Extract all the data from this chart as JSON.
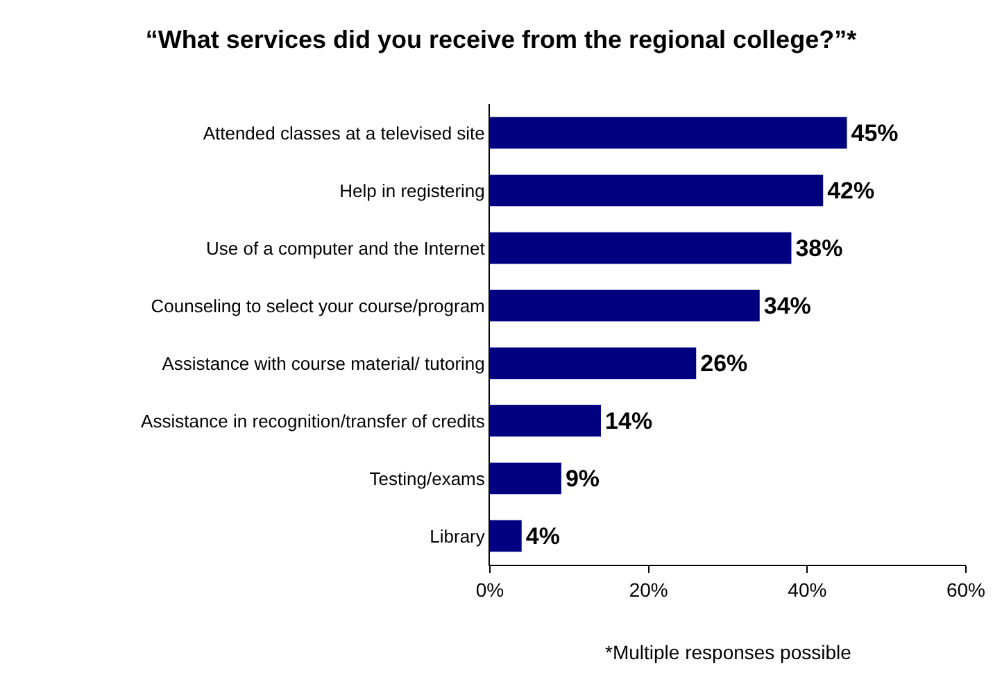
{
  "chart_data": {
    "type": "bar",
    "orientation": "horizontal",
    "title": "“What services did you receive from the regional college?”*",
    "categories": [
      "Attended classes at a televised site",
      "Help in registering",
      "Use of a computer and the Internet",
      "Counseling to select your course/program",
      "Assistance with course material/ tutoring",
      "Assistance in recognition/transfer of credits",
      "Testing/exams",
      "Library"
    ],
    "values": [
      45,
      42,
      38,
      34,
      26,
      14,
      9,
      4
    ],
    "value_labels": [
      "45%",
      "42%",
      "38%",
      "34%",
      "26%",
      "14%",
      "9%",
      "4%"
    ],
    "color": "#000080",
    "xlim": [
      0,
      60
    ],
    "xticks": [
      {
        "value": 0,
        "label": "0%"
      },
      {
        "value": 20,
        "label": "20%"
      },
      {
        "value": 40,
        "label": "40%"
      },
      {
        "value": 60,
        "label": "60%"
      }
    ],
    "annotations": [
      "*Multiple responses possible"
    ]
  }
}
